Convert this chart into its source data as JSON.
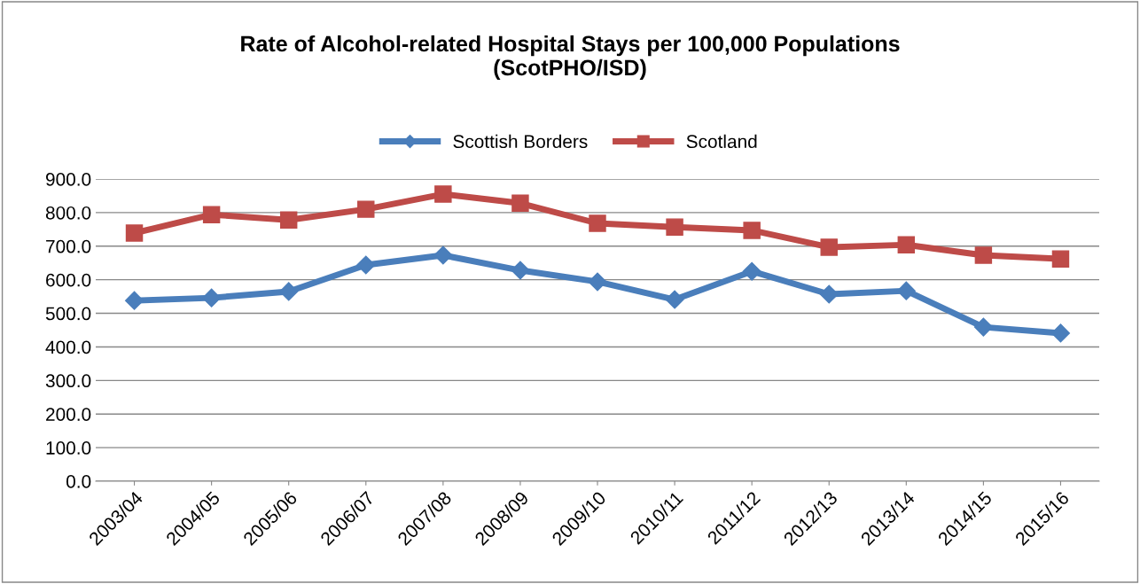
{
  "chart_data": {
    "type": "line",
    "title": "Rate of Alcohol-related Hospital Stays per 100,000 Populations\n(ScotPHO/ISD)",
    "categories": [
      "2003/04",
      "2004/05",
      "2005/06",
      "2006/07",
      "2007/08",
      "2008/09",
      "2009/10",
      "2010/11",
      "2011/12",
      "2012/13",
      "2013/14",
      "2014/15",
      "2015/16"
    ],
    "series": [
      {
        "name": "Scottish Borders",
        "color": "#4a7ebb",
        "marker": "diamond",
        "values": [
          538,
          546,
          565,
          644,
          673,
          628,
          594,
          541,
          625,
          557,
          567,
          459,
          441
        ]
      },
      {
        "name": "Scotland",
        "color": "#be4b48",
        "marker": "square",
        "values": [
          739,
          794,
          778,
          810,
          855,
          828,
          768,
          757,
          747,
          697,
          704,
          673,
          662
        ]
      }
    ],
    "ylim": [
      0,
      900
    ],
    "yticks": [
      {
        "value": 0,
        "label": "0.0"
      },
      {
        "value": 100,
        "label": "100.0"
      },
      {
        "value": 200,
        "label": "200.0"
      },
      {
        "value": 300,
        "label": "300.0"
      },
      {
        "value": 400,
        "label": "400.0"
      },
      {
        "value": 500,
        "label": "500.0"
      },
      {
        "value": 600,
        "label": "600.0"
      },
      {
        "value": 700,
        "label": "700.0"
      },
      {
        "value": 800,
        "label": "800.0"
      },
      {
        "value": 900,
        "label": "900.0"
      }
    ],
    "grid": "y",
    "legend": "top",
    "line_style": "solid"
  }
}
